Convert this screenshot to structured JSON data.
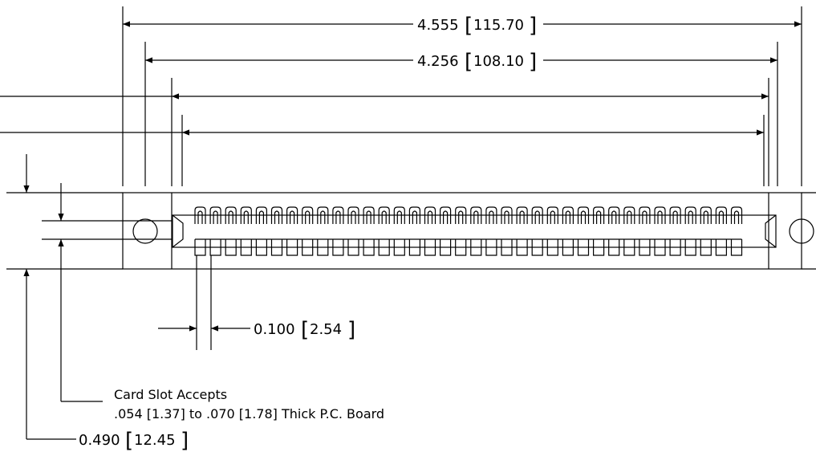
{
  "dimensions": {
    "overall_length": {
      "inch": "4.555",
      "mm": "115.70"
    },
    "hole_spacing": {
      "inch": "4.256",
      "mm": "108.10"
    },
    "contact_pitch": {
      "inch": "0.100",
      "mm": "2.54"
    },
    "height": {
      "inch": "0.490",
      "mm": "12.45"
    }
  },
  "note": {
    "line1": "Card Slot Accepts",
    "line2": ".054 [1.37] to .070 [1.78] Thick P.C. Board"
  },
  "connector": {
    "top_contact_count": 36,
    "bottom_contact_count": 36
  }
}
